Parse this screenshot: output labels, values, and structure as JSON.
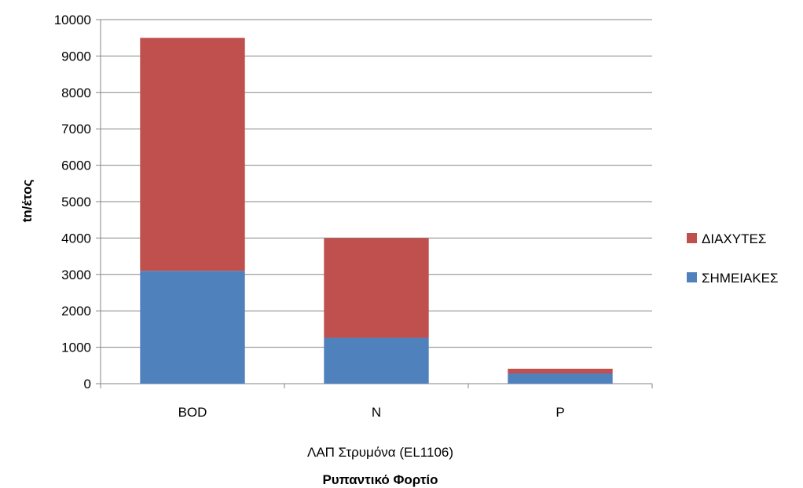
{
  "chart_data": {
    "type": "bar",
    "stacked": true,
    "categories": [
      "BOD",
      "N",
      "P"
    ],
    "series": [
      {
        "name": "ΣΗΜΕΙΑΚΕΣ",
        "color": "#4f81bd",
        "values": [
          3100,
          1260,
          280
        ]
      },
      {
        "name": "ΔΙΑΧΥΤΕΣ",
        "color": "#c0504d",
        "values": [
          6400,
          2740,
          130
        ]
      }
    ],
    "xlabel_sub": "ΛΑΠ Στρυμόνα (EL1106)",
    "xlabel": "Ρυπαντικό Φορτίο",
    "ylabel": "tn/έτος",
    "ylim": [
      0,
      10000
    ],
    "yticks": [
      0,
      1000,
      2000,
      3000,
      4000,
      5000,
      6000,
      7000,
      8000,
      9000,
      10000
    ],
    "grid": true,
    "legend_position": "right"
  }
}
